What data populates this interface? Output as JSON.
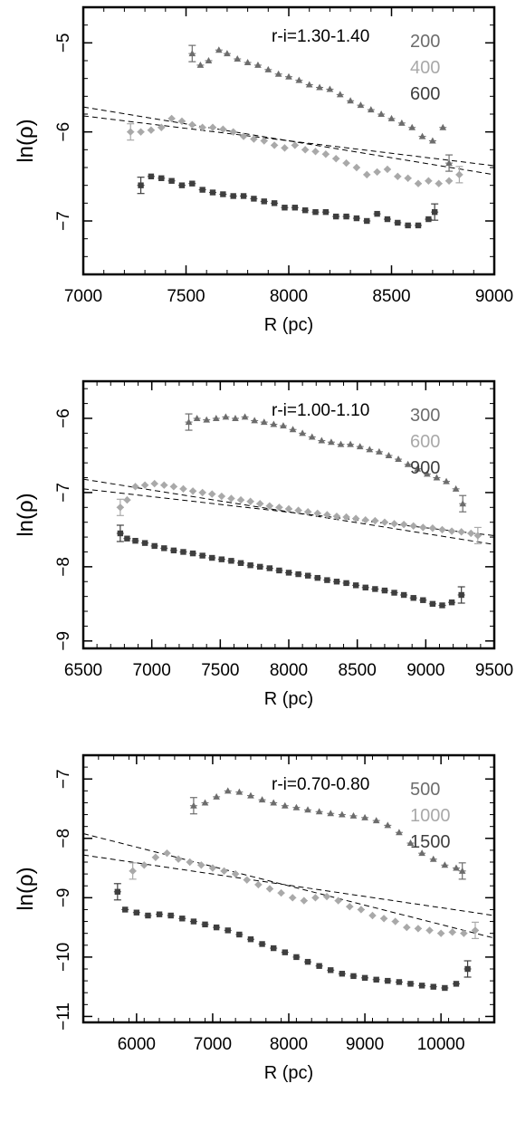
{
  "chart_data": [
    {
      "type": "scatter",
      "title": "r-i=1.30-1.40",
      "xlabel": "R (pc)",
      "ylabel": "ln(ρ)",
      "xlim": [
        7000,
        9000
      ],
      "ylim": [
        -7.6,
        -4.6
      ],
      "xticks": [
        7000,
        7500,
        8000,
        8500,
        9000
      ],
      "yticks": [
        -5,
        -6,
        -7
      ],
      "grid": false,
      "legend_position": "top-right",
      "series": [
        {
          "name": "200",
          "color": "#6d6d6d",
          "marker": "triangle",
          "x": [
            7530,
            7570,
            7610,
            7660,
            7700,
            7750,
            7800,
            7850,
            7900,
            7950,
            8000,
            8050,
            8100,
            8150,
            8200,
            8250,
            8300,
            8350,
            8400,
            8450,
            8500,
            8550,
            8600,
            8650,
            8700,
            8750,
            8780
          ],
          "y": [
            -5.12,
            -5.25,
            -5.2,
            -5.08,
            -5.12,
            -5.18,
            -5.22,
            -5.25,
            -5.3,
            -5.35,
            -5.38,
            -5.42,
            -5.47,
            -5.5,
            -5.52,
            -5.58,
            -5.65,
            -5.7,
            -5.75,
            -5.8,
            -5.85,
            -5.9,
            -5.95,
            -6.05,
            -6.1,
            -5.95,
            -6.35
          ]
        },
        {
          "name": "400",
          "color": "#a9a9a9",
          "marker": "diamond",
          "x": [
            7230,
            7280,
            7330,
            7380,
            7430,
            7480,
            7530,
            7580,
            7630,
            7680,
            7730,
            7780,
            7830,
            7880,
            7930,
            7980,
            8030,
            8080,
            8130,
            8180,
            8230,
            8280,
            8330,
            8380,
            8430,
            8480,
            8530,
            8580,
            8630,
            8680,
            8730,
            8780,
            8830
          ],
          "y": [
            -6.0,
            -6.0,
            -5.98,
            -5.95,
            -5.85,
            -5.88,
            -5.92,
            -5.95,
            -5.95,
            -5.97,
            -6.0,
            -6.05,
            -6.08,
            -6.1,
            -6.15,
            -6.18,
            -6.15,
            -6.2,
            -6.22,
            -6.25,
            -6.3,
            -6.35,
            -6.4,
            -6.48,
            -6.45,
            -6.42,
            -6.5,
            -6.52,
            -6.58,
            -6.55,
            -6.58,
            -6.55,
            -6.48
          ]
        },
        {
          "name": "600",
          "color": "#3f3f3f",
          "marker": "square",
          "x": [
            7280,
            7330,
            7380,
            7430,
            7480,
            7530,
            7580,
            7630,
            7680,
            7730,
            7780,
            7830,
            7880,
            7930,
            7980,
            8030,
            8080,
            8130,
            8180,
            8230,
            8280,
            8330,
            8380,
            8430,
            8480,
            8530,
            8580,
            8630,
            8680,
            8710
          ],
          "y": [
            -6.6,
            -6.5,
            -6.52,
            -6.55,
            -6.6,
            -6.58,
            -6.65,
            -6.68,
            -6.7,
            -6.72,
            -6.72,
            -6.75,
            -6.78,
            -6.8,
            -6.85,
            -6.85,
            -6.88,
            -6.9,
            -6.9,
            -6.95,
            -6.95,
            -6.97,
            -7.0,
            -6.92,
            -6.98,
            -7.02,
            -7.05,
            -7.05,
            -6.98,
            -6.9
          ]
        }
      ],
      "fit_lines": [
        {
          "x": [
            7000,
            9000
          ],
          "y": [
            -5.72,
            -6.48
          ]
        },
        {
          "x": [
            7000,
            9000
          ],
          "y": [
            -5.82,
            -6.38
          ]
        }
      ]
    },
    {
      "type": "scatter",
      "title": "r-i=1.00-1.10",
      "xlabel": "R (pc)",
      "ylabel": "ln(ρ)",
      "xlim": [
        6500,
        9500
      ],
      "ylim": [
        -9.1,
        -5.5
      ],
      "xticks": [
        6500,
        7000,
        7500,
        8000,
        8500,
        9000,
        9500
      ],
      "yticks": [
        -6,
        -7,
        -8,
        -9
      ],
      "grid": false,
      "legend_position": "top-right",
      "series": [
        {
          "name": "300",
          "color": "#6d6d6d",
          "marker": "triangle",
          "x": [
            7270,
            7330,
            7400,
            7470,
            7540,
            7610,
            7680,
            7750,
            7820,
            7890,
            7960,
            8030,
            8100,
            8170,
            8240,
            8310,
            8380,
            8450,
            8520,
            8590,
            8660,
            8730,
            8800,
            8870,
            8940,
            9010,
            9080,
            9150,
            9220,
            9270
          ],
          "y": [
            -6.05,
            -6.0,
            -6.02,
            -6.0,
            -5.98,
            -6.0,
            -5.98,
            -6.03,
            -6.05,
            -6.08,
            -6.1,
            -6.15,
            -6.2,
            -6.25,
            -6.3,
            -6.32,
            -6.35,
            -6.35,
            -6.38,
            -6.42,
            -6.45,
            -6.5,
            -6.55,
            -6.62,
            -6.68,
            -6.75,
            -6.8,
            -6.85,
            -6.95,
            -7.15
          ]
        },
        {
          "name": "600",
          "color": "#a9a9a9",
          "marker": "diamond",
          "x": [
            6770,
            6820,
            6880,
            6950,
            7020,
            7090,
            7160,
            7230,
            7300,
            7370,
            7440,
            7510,
            7580,
            7650,
            7720,
            7790,
            7860,
            7930,
            8000,
            8070,
            8140,
            8210,
            8280,
            8350,
            8420,
            8490,
            8560,
            8630,
            8700,
            8770,
            8840,
            8910,
            8980,
            9050,
            9120,
            9190,
            9260,
            9330,
            9380
          ],
          "y": [
            -7.2,
            -7.1,
            -6.92,
            -6.9,
            -6.88,
            -6.9,
            -6.92,
            -6.95,
            -6.98,
            -7.0,
            -7.02,
            -7.05,
            -7.08,
            -7.1,
            -7.12,
            -7.15,
            -7.18,
            -7.2,
            -7.22,
            -7.24,
            -7.26,
            -7.28,
            -7.3,
            -7.32,
            -7.33,
            -7.35,
            -7.37,
            -7.38,
            -7.4,
            -7.42,
            -7.43,
            -7.45,
            -7.47,
            -7.48,
            -7.5,
            -7.52,
            -7.53,
            -7.55,
            -7.58
          ]
        },
        {
          "name": "900",
          "color": "#3f3f3f",
          "marker": "square",
          "x": [
            6770,
            6820,
            6880,
            6950,
            7020,
            7090,
            7160,
            7230,
            7300,
            7370,
            7440,
            7510,
            7580,
            7650,
            7720,
            7790,
            7860,
            7930,
            8000,
            8070,
            8140,
            8210,
            8280,
            8350,
            8420,
            8490,
            8560,
            8630,
            8700,
            8770,
            8840,
            8910,
            8980,
            9050,
            9120,
            9190,
            9260
          ],
          "y": [
            -7.55,
            -7.62,
            -7.65,
            -7.68,
            -7.72,
            -7.75,
            -7.78,
            -7.8,
            -7.82,
            -7.85,
            -7.88,
            -7.9,
            -7.92,
            -7.95,
            -7.98,
            -8.0,
            -8.02,
            -8.05,
            -8.08,
            -8.1,
            -8.12,
            -8.15,
            -8.18,
            -8.2,
            -8.22,
            -8.25,
            -8.28,
            -8.3,
            -8.32,
            -8.35,
            -8.38,
            -8.42,
            -8.45,
            -8.5,
            -8.52,
            -8.48,
            -8.38
          ]
        }
      ],
      "fit_lines": [
        {
          "x": [
            6500,
            9500
          ],
          "y": [
            -6.82,
            -7.7
          ]
        },
        {
          "x": [
            6500,
            9500
          ],
          "y": [
            -6.95,
            -7.58
          ]
        }
      ]
    },
    {
      "type": "scatter",
      "title": "r-i=0.70-0.80",
      "xlabel": "R (pc)",
      "ylabel": "ln(ρ)",
      "xlim": [
        5300,
        10700
      ],
      "ylim": [
        -11.1,
        -6.6
      ],
      "xticks": [
        6000,
        7000,
        8000,
        9000,
        10000
      ],
      "yticks": [
        -7,
        -8,
        -9,
        -10,
        -11
      ],
      "grid": false,
      "legend_position": "top-right",
      "series": [
        {
          "name": "500",
          "color": "#6d6d6d",
          "marker": "triangle",
          "x": [
            6750,
            6900,
            7050,
            7200,
            7350,
            7500,
            7650,
            7800,
            7950,
            8100,
            8250,
            8400,
            8550,
            8700,
            8850,
            9000,
            9150,
            9300,
            9450,
            9600,
            9750,
            9900,
            10050,
            10200,
            10280
          ],
          "y": [
            -7.45,
            -7.4,
            -7.3,
            -7.2,
            -7.22,
            -7.28,
            -7.35,
            -7.4,
            -7.45,
            -7.48,
            -7.52,
            -7.55,
            -7.58,
            -7.6,
            -7.62,
            -7.65,
            -7.7,
            -7.78,
            -7.9,
            -8.08,
            -8.25,
            -8.35,
            -8.45,
            -8.5,
            -8.55
          ]
        },
        {
          "name": "1000",
          "color": "#a9a9a9",
          "marker": "diamond",
          "x": [
            5950,
            6100,
            6250,
            6400,
            6550,
            6700,
            6850,
            7000,
            7150,
            7300,
            7450,
            7600,
            7750,
            7900,
            8050,
            8200,
            8350,
            8500,
            8650,
            8800,
            8950,
            9100,
            9250,
            9400,
            9550,
            9700,
            9850,
            10000,
            10150,
            10300,
            10450
          ],
          "y": [
            -8.55,
            -8.45,
            -8.32,
            -8.25,
            -8.35,
            -8.4,
            -8.45,
            -8.5,
            -8.55,
            -8.6,
            -8.7,
            -8.78,
            -8.85,
            -8.92,
            -9.0,
            -9.05,
            -9.0,
            -8.98,
            -9.05,
            -9.15,
            -9.2,
            -9.3,
            -9.35,
            -9.4,
            -9.5,
            -9.52,
            -9.55,
            -9.6,
            -9.58,
            -9.6,
            -9.55
          ]
        },
        {
          "name": "1500",
          "color": "#3f3f3f",
          "marker": "square",
          "x": [
            5750,
            5850,
            6000,
            6150,
            6300,
            6450,
            6600,
            6750,
            6900,
            7050,
            7200,
            7350,
            7500,
            7650,
            7800,
            7950,
            8100,
            8250,
            8400,
            8550,
            8700,
            8850,
            9000,
            9150,
            9300,
            9450,
            9600,
            9750,
            9900,
            10050,
            10200,
            10350
          ],
          "y": [
            -8.9,
            -9.2,
            -9.25,
            -9.3,
            -9.28,
            -9.3,
            -9.35,
            -9.4,
            -9.45,
            -9.5,
            -9.55,
            -9.62,
            -9.7,
            -9.78,
            -9.85,
            -9.92,
            -10.0,
            -10.08,
            -10.15,
            -10.22,
            -10.28,
            -10.32,
            -10.35,
            -10.38,
            -10.4,
            -10.42,
            -10.45,
            -10.48,
            -10.5,
            -10.52,
            -10.45,
            -10.2
          ]
        }
      ],
      "fit_lines": [
        {
          "x": [
            5300,
            10700
          ],
          "y": [
            -7.92,
            -9.68
          ]
        },
        {
          "x": [
            5300,
            10700
          ],
          "y": [
            -8.28,
            -9.3
          ]
        }
      ]
    }
  ]
}
